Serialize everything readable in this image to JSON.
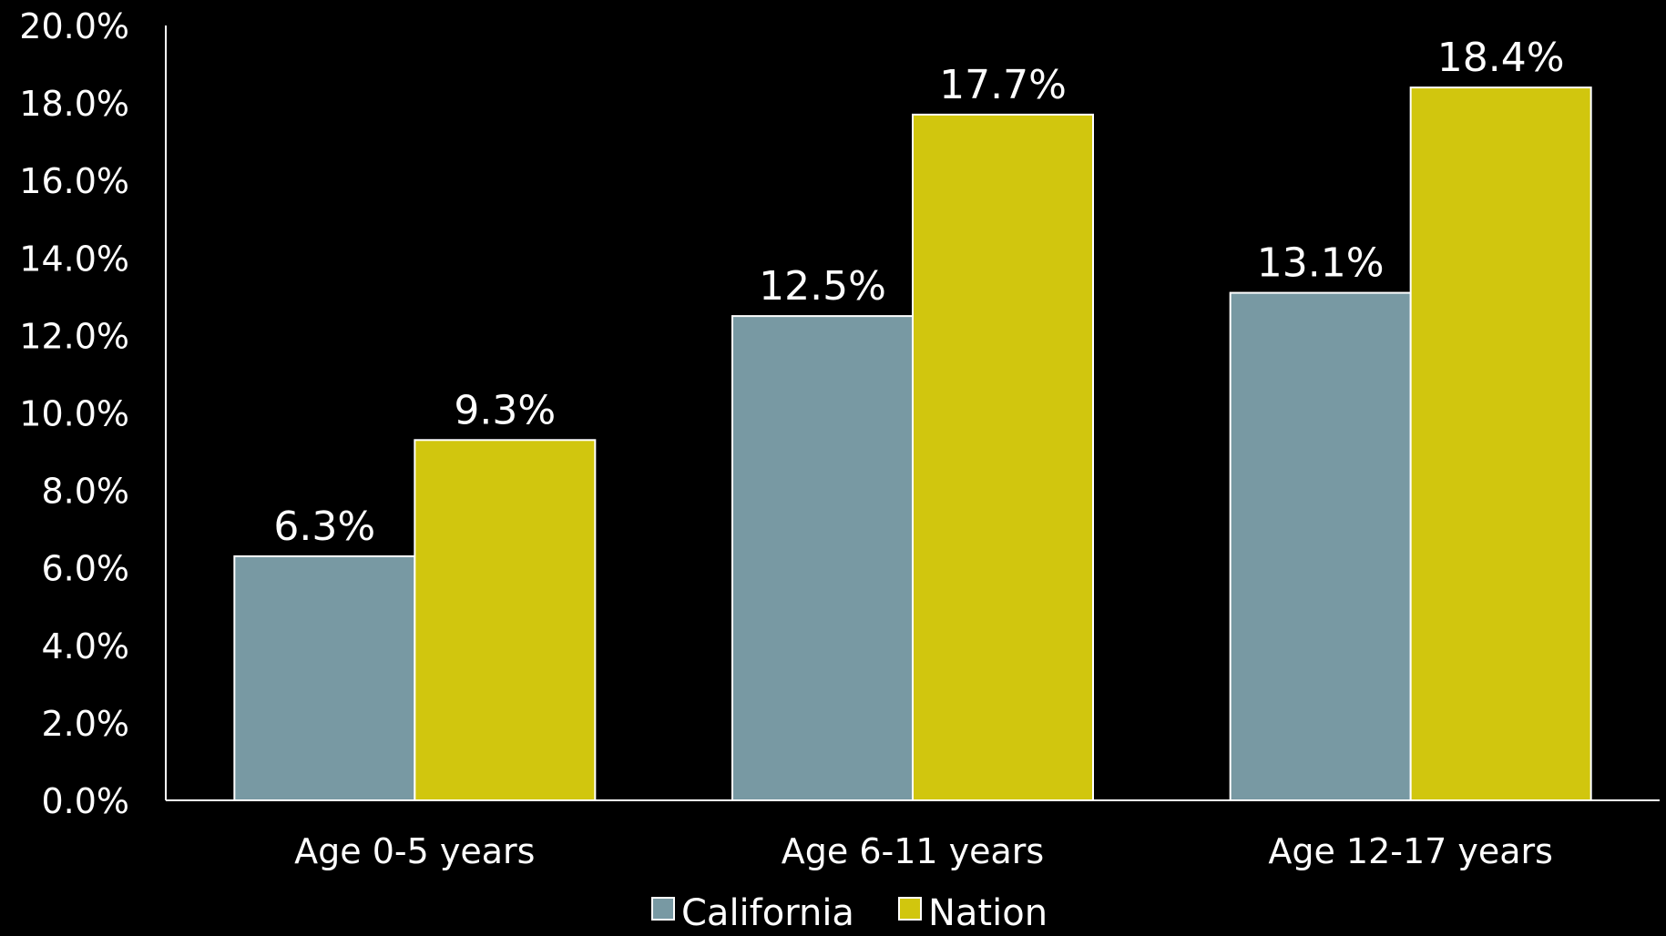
{
  "chart_data": {
    "type": "bar",
    "categories": [
      "Age 0-5 years",
      "Age 6-11 years",
      "Age 12-17 years"
    ],
    "series": [
      {
        "name": "California",
        "values": [
          6.3,
          12.5,
          13.1
        ],
        "labels": [
          "6.3%",
          "12.5%",
          "13.1%"
        ],
        "color": "#7899A3"
      },
      {
        "name": "Nation",
        "values": [
          9.3,
          17.7,
          18.4
        ],
        "labels": [
          "9.3%",
          "17.7%",
          "18.4%"
        ],
        "color": "#D1C60E"
      }
    ],
    "y_ticks": [
      "0.0%",
      "2.0%",
      "4.0%",
      "6.0%",
      "8.0%",
      "10.0%",
      "12.0%",
      "14.0%",
      "16.0%",
      "18.0%",
      "20.0%"
    ],
    "ylim": [
      0,
      20
    ],
    "grid": false,
    "legend": "bottom-center",
    "background": "#000000",
    "axis_color": "#ffffff"
  }
}
